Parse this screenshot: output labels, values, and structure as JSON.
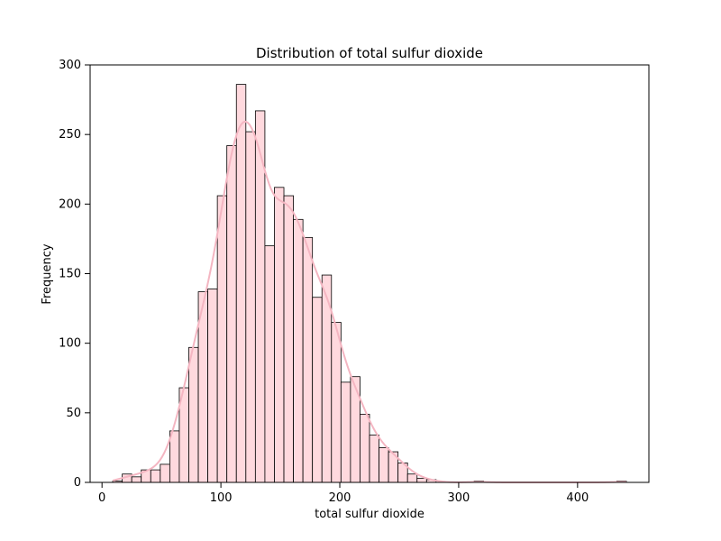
{
  "chart_data": {
    "type": "bar",
    "title": "Distribution of total sulfur dioxide",
    "xlabel": "total sulfur dioxide",
    "ylabel": "Frequency",
    "xlim": [
      -10,
      460
    ],
    "ylim": [
      0,
      300
    ],
    "xticks": [
      0,
      100,
      200,
      300,
      400
    ],
    "yticks": [
      0,
      50,
      100,
      150,
      200,
      250,
      300
    ],
    "grid": false,
    "legend": "none",
    "kde": true,
    "bar_fill_color": "#ffd9de",
    "bar_edge_color": "#000000",
    "kde_color": "#f4b6c2",
    "bins": {
      "start": 9,
      "width": 8.0,
      "counts": [
        1,
        6,
        4,
        9,
        9,
        13,
        37,
        68,
        97,
        137,
        139,
        206,
        242,
        286,
        252,
        267,
        170,
        212,
        206,
        189,
        176,
        133,
        149,
        115,
        72,
        76,
        49,
        34,
        25,
        22,
        14,
        6,
        3,
        2,
        0,
        0,
        0,
        0,
        1,
        0,
        0,
        0,
        0,
        0,
        0,
        0,
        0,
        0,
        0,
        0,
        0,
        0,
        0,
        1
      ]
    }
  }
}
